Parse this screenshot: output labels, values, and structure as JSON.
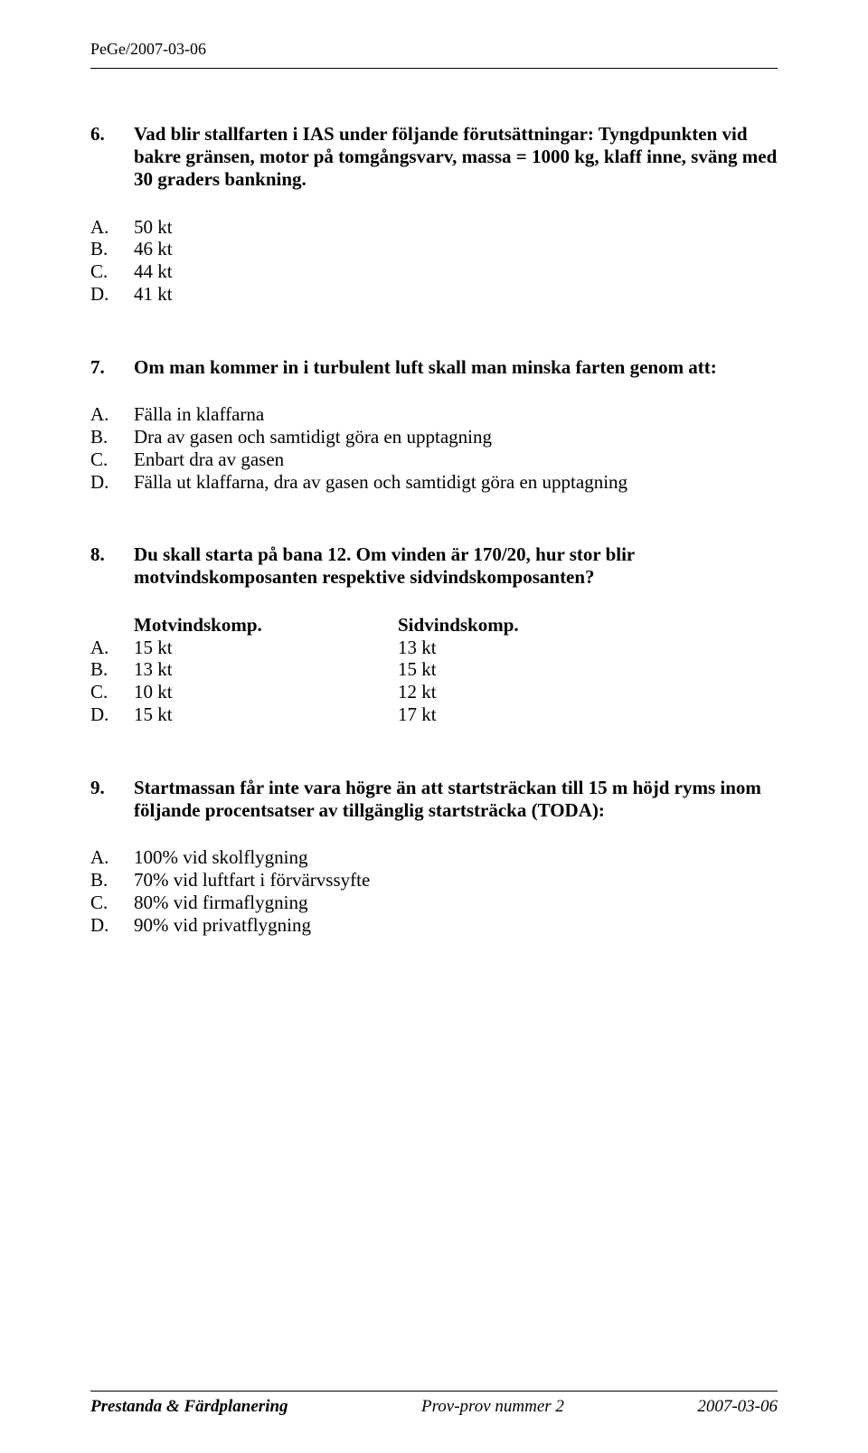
{
  "header": {
    "code": "PeGe/2007-03-06"
  },
  "questions": [
    {
      "number": "6.",
      "text": "Vad blir stallfarten i IAS under följande förutsättningar: Tyngdpunkten vid bakre gränsen, motor på tomgångsvarv, massa = 1000 kg, klaff inne, sväng med 30 graders bankning.",
      "options": [
        {
          "letter": "A.",
          "text": "50 kt"
        },
        {
          "letter": "B.",
          "text": "46 kt"
        },
        {
          "letter": "C.",
          "text": "44 kt"
        },
        {
          "letter": "D.",
          "text": "41 kt"
        }
      ]
    },
    {
      "number": "7.",
      "text": "Om man kommer in i turbulent luft skall man minska farten genom att:",
      "options": [
        {
          "letter": "A.",
          "text": "Fälla in klaffarna"
        },
        {
          "letter": "B.",
          "text": "Dra av gasen och samtidigt göra en upptagning"
        },
        {
          "letter": "C.",
          "text": "Enbart dra av gasen"
        },
        {
          "letter": "D.",
          "text": "Fälla ut klaffarna, dra av gasen och samtidigt göra en upptagning"
        }
      ]
    },
    {
      "number": "8.",
      "text": "Du skall starta på bana 12. Om vinden är 170/20, hur stor blir motvindskomposanten respektive sidvindskomposanten?",
      "table": {
        "col1_header": "Motvindskomp.",
        "col2_header": "Sidvindskomp.",
        "rows": [
          {
            "letter": "A.",
            "c1": "15 kt",
            "c2": "13 kt"
          },
          {
            "letter": "B.",
            "c1": "13 kt",
            "c2": "15 kt"
          },
          {
            "letter": "C.",
            "c1": "10 kt",
            "c2": "12 kt"
          },
          {
            "letter": "D.",
            "c1": "15 kt",
            "c2": "17 kt"
          }
        ]
      }
    },
    {
      "number": "9.",
      "text": "Startmassan får inte vara högre än att startsträckan till 15 m höjd ryms inom följande procentsatser av tillgänglig startsträcka (TODA):",
      "options": [
        {
          "letter": "A.",
          "text": "100% vid skolflygning"
        },
        {
          "letter": "B.",
          "text": "70% vid luftfart i förvärvssyfte"
        },
        {
          "letter": "C.",
          "text": "80% vid firmaflygning"
        },
        {
          "letter": "D.",
          "text": "90% vid privatflygning"
        }
      ]
    }
  ],
  "footer": {
    "left": "Prestanda & Färdplanering",
    "center": "Prov-prov nummer 2",
    "right": "2007-03-06"
  }
}
